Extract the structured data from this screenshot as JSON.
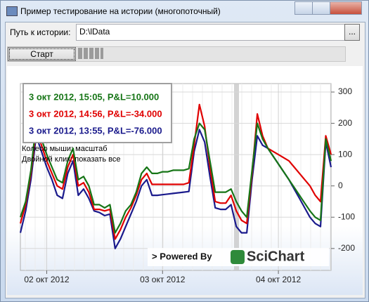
{
  "window": {
    "title": "Пример тестирование на истории (многопоточный)"
  },
  "path_label": "Путь к истории:",
  "path_value": "D:\\lData",
  "browse_button": "...",
  "start_button": "Старт",
  "chart_data": {
    "type": "line",
    "categories": [
      null,
      null,
      null,
      null,
      null,
      "02 окт 2012",
      null,
      null,
      null,
      null,
      null,
      null,
      null,
      null,
      null,
      null,
      null,
      null,
      null,
      null,
      null,
      null,
      null,
      null,
      null,
      null,
      null,
      "03 окт 2012",
      null,
      null,
      null,
      null,
      null,
      null,
      null,
      null,
      null,
      null,
      null,
      null,
      null,
      null,
      null,
      null,
      null,
      null,
      null,
      null,
      null,
      "04 окт 2012",
      null,
      null,
      null,
      null,
      null,
      null,
      null,
      null,
      null,
      null
    ],
    "series": [
      {
        "name": "3 окт 2012, 15:05, P&L=10.000",
        "color": "#167516",
        "values": [
          -100,
          -50,
          50,
          200,
          150,
          100,
          60,
          20,
          10,
          80,
          120,
          20,
          30,
          0,
          -60,
          -60,
          -70,
          -60,
          -150,
          -120,
          -80,
          -60,
          -20,
          40,
          60,
          40,
          40,
          45,
          45,
          50,
          50,
          50,
          55,
          150,
          200,
          180,
          80,
          -20,
          -20,
          -20,
          -10,
          -50,
          -80,
          -100,
          50,
          200,
          150,
          120,
          95,
          70,
          45,
          20,
          -5,
          -30,
          -55,
          -80,
          -100,
          -110,
          150,
          80
        ]
      },
      {
        "name": "3 окт 2012, 14:56, P&L=-34.000",
        "color": "#e00000",
        "values": [
          -120,
          -60,
          40,
          180,
          130,
          80,
          40,
          0,
          -10,
          60,
          100,
          0,
          10,
          -20,
          -75,
          -75,
          -80,
          -75,
          -170,
          -140,
          -100,
          -70,
          -30,
          20,
          40,
          5,
          5,
          5,
          5,
          5,
          5,
          5,
          10,
          130,
          260,
          190,
          60,
          -50,
          -55,
          -55,
          -30,
          -80,
          -110,
          -120,
          40,
          230,
          160,
          120,
          110,
          100,
          90,
          80,
          60,
          40,
          20,
          0,
          -30,
          -50,
          160,
          100
        ]
      },
      {
        "name": "3 окт 2012, 13:55, P&L=-76.000",
        "color": "#1a1a8c",
        "values": [
          -150,
          -80,
          20,
          160,
          110,
          60,
          20,
          -30,
          -40,
          40,
          80,
          -30,
          -10,
          -40,
          -80,
          -85,
          -95,
          -90,
          -200,
          -170,
          -130,
          -90,
          -50,
          0,
          20,
          -30,
          -30,
          -28,
          -26,
          -24,
          -22,
          -20,
          -18,
          110,
          180,
          140,
          30,
          -70,
          -75,
          -75,
          -60,
          -130,
          -150,
          -150,
          20,
          160,
          130,
          120,
          95,
          70,
          45,
          20,
          -10,
          -40,
          -70,
          -100,
          -120,
          -130,
          140,
          60
        ]
      }
    ],
    "ylim": [
      -270,
      327
    ],
    "yticks": [
      -200,
      -100,
      0,
      100,
      200,
      300
    ],
    "grid": true,
    "annotations": [
      "Колесо мыши: масштаб",
      "Двойной клик: показать все"
    ],
    "watermark": [
      "> Powered By",
      "SciChart"
    ]
  }
}
